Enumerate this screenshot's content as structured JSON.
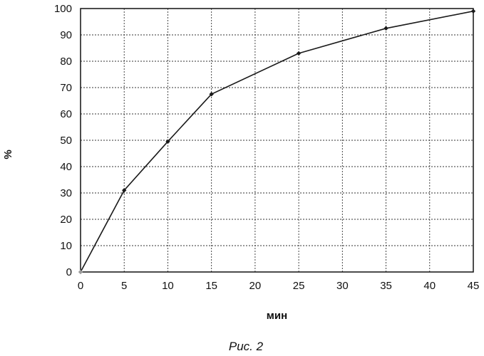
{
  "chart_data": {
    "type": "line",
    "title": "",
    "xlabel": "мин",
    "ylabel": "%",
    "caption": "Рис. 2",
    "xlim": [
      0,
      45
    ],
    "ylim": [
      0,
      100
    ],
    "x_ticks": [
      0,
      5,
      10,
      15,
      20,
      25,
      30,
      35,
      40,
      45
    ],
    "y_ticks": [
      0,
      10,
      20,
      30,
      40,
      50,
      60,
      70,
      80,
      90,
      100
    ],
    "grid": true,
    "grid_style": "dashed",
    "legend": "none",
    "line_color": "#1a1a1a",
    "series": [
      {
        "x": [
          0,
          5,
          10,
          15,
          25,
          35,
          45
        ],
        "y": [
          0,
          31,
          49.5,
          67.5,
          83,
          92.5,
          99
        ]
      }
    ]
  }
}
